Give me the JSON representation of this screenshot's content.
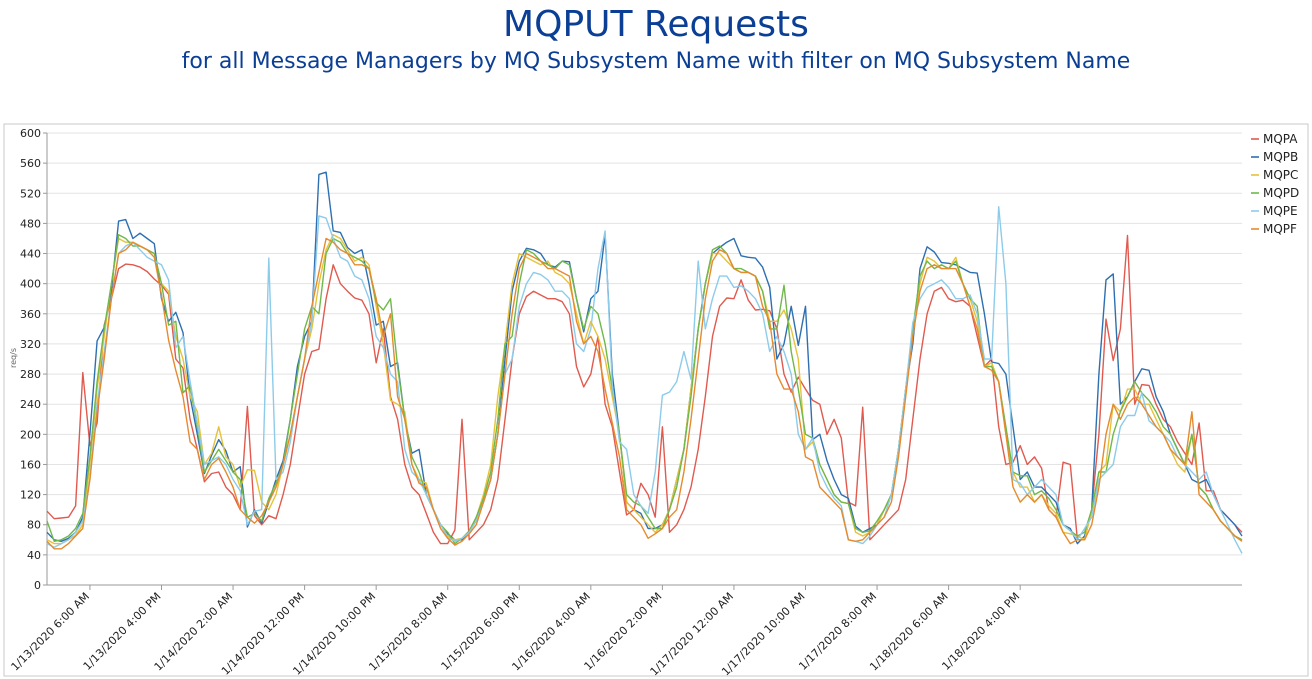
{
  "title": "MQPUT Requests",
  "subtitle": "for all Message Managers by MQ Subsystem Name with filter on MQ Subsystem Name",
  "chart_data": {
    "type": "line",
    "title": "MQPUT Requests",
    "subtitle": "for all Message Managers by MQ Subsystem Name with filter on MQ Subsystem Name",
    "xlabel": "",
    "ylabel": "req/s",
    "ylim": [
      0,
      600
    ],
    "yticks": [
      0,
      40,
      80,
      120,
      160,
      200,
      240,
      280,
      320,
      360,
      400,
      440,
      480,
      520,
      560,
      600
    ],
    "grid": true,
    "legend_position": "right",
    "x_start": "1/13/2020 12:00 AM",
    "x_end": "1/18/2020 11:00 PM",
    "x_step_hours": 1,
    "xtick_labels": [
      "1/13/2020 6:00 AM",
      "1/13/2020 4:00 PM",
      "1/14/2020 2:00 AM",
      "1/14/2020 12:00 PM",
      "1/14/2020 10:00 PM",
      "1/15/2020 8:00 AM",
      "1/15/2020 6:00 PM",
      "1/16/2020 4:00 AM",
      "1/16/2020 2:00 PM",
      "1/17/2020 12:00 AM",
      "1/17/2020 10:00 AM",
      "1/17/2020 8:00 PM",
      "1/18/2020 6:00 AM",
      "1/18/2020 4:00 PM"
    ],
    "series": [
      {
        "name": "MQPA",
        "color": "#e05a4f",
        "values": [
          98,
          88,
          89,
          90,
          105,
          282,
          185,
          215,
          345,
          380,
          420,
          426,
          425,
          422,
          416,
          406,
          398,
          386,
          300,
          288,
          220,
          180,
          137,
          148,
          150,
          130,
          120,
          100,
          237,
          92,
          80,
          92,
          88,
          120,
          160,
          220,
          280,
          310,
          313,
          380,
          425,
          400,
          390,
          381,
          378,
          360,
          295,
          340,
          250,
          220,
          160,
          130,
          120,
          95,
          70,
          55,
          55,
          73,
          220,
          60,
          70,
          80,
          100,
          140,
          220,
          300,
          360,
          383,
          390,
          385,
          380,
          380,
          376,
          360,
          290,
          263,
          280,
          330,
          240,
          210,
          150,
          93,
          100,
          135,
          120,
          90,
          210,
          70,
          80,
          100,
          130,
          180,
          250,
          330,
          370,
          381,
          380,
          405,
          378,
          365,
          366,
          364,
          340,
          280,
          256,
          276,
          260,
          245,
          240,
          200,
          220,
          195,
          110,
          105,
          236,
          60,
          70,
          80,
          90,
          100,
          140,
          220,
          300,
          360,
          390,
          395,
          380,
          376,
          378,
          370,
          330,
          290,
          300,
          210,
          160,
          163,
          185,
          160,
          170,
          155,
          100,
          90,
          163,
          160,
          60,
          60,
          100,
          200,
          353,
          298,
          340,
          464,
          240,
          266,
          265,
          240,
          220,
          210,
          190,
          175,
          160,
          215,
          125,
          125,
          100,
          90,
          80,
          70
        ]
      },
      {
        "name": "MQPB",
        "color": "#2e6fb0",
        "values": [
          70,
          60,
          58,
          62,
          70,
          90,
          200,
          324,
          342,
          390,
          483,
          485,
          460,
          467,
          460,
          453,
          380,
          350,
          362,
          335,
          250,
          200,
          148,
          172,
          193,
          178,
          150,
          157,
          77,
          100,
          82,
          110,
          140,
          165,
          220,
          290,
          330,
          350,
          545,
          548,
          470,
          468,
          448,
          440,
          445,
          400,
          345,
          350,
          290,
          295,
          220,
          175,
          180,
          120,
          100,
          80,
          68,
          60,
          60,
          70,
          90,
          110,
          140,
          200,
          300,
          390,
          430,
          447,
          445,
          440,
          425,
          422,
          430,
          429,
          380,
          336,
          380,
          390,
          465,
          280,
          200,
          110,
          100,
          95,
          75,
          75,
          80,
          100,
          140,
          180,
          260,
          340,
          400,
          440,
          448,
          455,
          460,
          437,
          435,
          434,
          422,
          395,
          300,
          320,
          370,
          318,
          370,
          193,
          200,
          165,
          140,
          120,
          115,
          78,
          70,
          75,
          80,
          100,
          120,
          180,
          260,
          320,
          420,
          449,
          442,
          428,
          427,
          425,
          420,
          415,
          414,
          360,
          296,
          294,
          280,
          210,
          140,
          150,
          130,
          130,
          120,
          110,
          80,
          75,
          55,
          65,
          100,
          280,
          405,
          413,
          240,
          250,
          270,
          287,
          285,
          250,
          230,
          200,
          180,
          160,
          140,
          135,
          140,
          120,
          100,
          90,
          80,
          65
        ]
      },
      {
        "name": "MQPC",
        "color": "#e6c23a",
        "values": [
          60,
          55,
          55,
          60,
          66,
          80,
          160,
          260,
          330,
          400,
          460,
          455,
          455,
          450,
          445,
          440,
          400,
          390,
          330,
          300,
          250,
          230,
          160,
          175,
          210,
          170,
          160,
          130,
          153,
          152,
          110,
          100,
          120,
          160,
          200,
          250,
          300,
          340,
          400,
          445,
          465,
          460,
          445,
          430,
          435,
          425,
          370,
          320,
          245,
          240,
          230,
          160,
          140,
          135,
          100,
          80,
          65,
          60,
          62,
          70,
          90,
          120,
          160,
          250,
          320,
          400,
          440,
          435,
          430,
          425,
          430,
          415,
          410,
          400,
          360,
          320,
          350,
          330,
          300,
          250,
          200,
          110,
          100,
          90,
          80,
          70,
          80,
          100,
          140,
          180,
          260,
          340,
          400,
          440,
          440,
          430,
          420,
          415,
          415,
          410,
          390,
          350,
          350,
          365,
          340,
          300,
          180,
          190,
          160,
          140,
          120,
          110,
          108,
          70,
          65,
          70,
          80,
          100,
          120,
          180,
          260,
          340,
          400,
          435,
          430,
          420,
          420,
          435,
          400,
          380,
          350,
          290,
          295,
          270,
          200,
          150,
          130,
          130,
          110,
          120,
          105,
          95,
          70,
          68,
          65,
          60,
          100,
          150,
          160,
          240,
          230,
          260,
          260,
          240,
          240,
          220,
          200,
          180,
          160,
          150,
          200,
          130,
          120,
          100,
          85,
          75,
          65,
          60
        ]
      },
      {
        "name": "MQPD",
        "color": "#6fb84a",
        "values": [
          85,
          58,
          60,
          65,
          75,
          95,
          170,
          270,
          340,
          400,
          465,
          460,
          450,
          450,
          445,
          440,
          400,
          345,
          350,
          255,
          265,
          210,
          150,
          165,
          180,
          165,
          150,
          140,
          90,
          95,
          85,
          115,
          135,
          160,
          220,
          280,
          340,
          370,
          360,
          440,
          460,
          455,
          440,
          435,
          430,
          420,
          375,
          365,
          380,
          290,
          220,
          170,
          150,
          120,
          100,
          80,
          70,
          55,
          62,
          72,
          90,
          115,
          150,
          220,
          320,
          330,
          400,
          445,
          440,
          430,
          425,
          420,
          430,
          425,
          380,
          340,
          370,
          360,
          320,
          260,
          200,
          120,
          110,
          105,
          90,
          75,
          75,
          100,
          130,
          180,
          250,
          340,
          400,
          445,
          450,
          440,
          420,
          420,
          415,
          410,
          390,
          340,
          340,
          398,
          310,
          260,
          200,
          195,
          160,
          140,
          120,
          110,
          108,
          75,
          70,
          72,
          85,
          100,
          120,
          180,
          260,
          340,
          410,
          430,
          420,
          425,
          420,
          430,
          400,
          380,
          370,
          290,
          290,
          270,
          210,
          150,
          145,
          145,
          120,
          125,
          115,
          100,
          80,
          72,
          65,
          70,
          100,
          150,
          150,
          200,
          230,
          250,
          270,
          255,
          245,
          230,
          210,
          200,
          180,
          160,
          200,
          130,
          120,
          100,
          85,
          75,
          65,
          60
        ]
      },
      {
        "name": "MQPE",
        "color": "#8dcbea",
        "values": [
          55,
          50,
          55,
          60,
          70,
          85,
          140,
          240,
          310,
          380,
          440,
          450,
          455,
          445,
          435,
          430,
          425,
          405,
          315,
          330,
          270,
          215,
          160,
          165,
          170,
          160,
          140,
          125,
          80,
          98,
          100,
          434,
          140,
          150,
          190,
          250,
          300,
          350,
          490,
          487,
          460,
          435,
          430,
          410,
          405,
          380,
          330,
          315,
          280,
          270,
          180,
          150,
          140,
          120,
          100,
          80,
          63,
          58,
          62,
          70,
          85,
          110,
          140,
          200,
          280,
          300,
          370,
          400,
          415,
          412,
          405,
          390,
          390,
          380,
          320,
          310,
          340,
          420,
          470,
          265,
          190,
          180,
          120,
          105,
          95,
          150,
          252,
          256,
          270,
          310,
          273,
          430,
          340,
          380,
          410,
          410,
          395,
          397,
          390,
          380,
          360,
          310,
          330,
          310,
          280,
          200,
          180,
          195,
          150,
          130,
          115,
          105,
          60,
          58,
          55,
          65,
          80,
          90,
          120,
          180,
          260,
          348,
          380,
          395,
          400,
          405,
          395,
          380,
          380,
          385,
          360,
          300,
          300,
          502,
          400,
          140,
          135,
          120,
          130,
          140,
          130,
          120,
          80,
          72,
          60,
          75,
          90,
          140,
          150,
          160,
          210,
          225,
          225,
          255,
          218,
          210,
          200,
          190,
          170,
          160,
          150,
          140,
          150,
          120,
          100,
          80,
          60,
          42
        ]
      },
      {
        "name": "MQPF",
        "color": "#e58a2e",
        "values": [
          58,
          48,
          48,
          55,
          65,
          75,
          140,
          230,
          300,
          380,
          440,
          445,
          455,
          450,
          445,
          435,
          385,
          325,
          285,
          250,
          190,
          180,
          140,
          160,
          168,
          150,
          130,
          100,
          90,
          82,
          92,
          110,
          130,
          160,
          200,
          250,
          300,
          370,
          415,
          460,
          455,
          445,
          440,
          425,
          425,
          420,
          380,
          330,
          360,
          250,
          220,
          160,
          135,
          130,
          100,
          75,
          62,
          53,
          58,
          68,
          80,
          110,
          140,
          200,
          280,
          360,
          420,
          440,
          435,
          430,
          420,
          420,
          415,
          410,
          350,
          320,
          330,
          310,
          260,
          215,
          170,
          100,
          90,
          80,
          62,
          68,
          75,
          90,
          100,
          150,
          220,
          300,
          380,
          430,
          445,
          440,
          420,
          415,
          415,
          410,
          370,
          350,
          280,
          260,
          260,
          230,
          170,
          165,
          130,
          120,
          110,
          100,
          60,
          58,
          60,
          70,
          80,
          90,
          110,
          170,
          250,
          330,
          390,
          420,
          425,
          420,
          420,
          420,
          400,
          370,
          340,
          290,
          285,
          270,
          200,
          130,
          110,
          120,
          110,
          120,
          100,
          90,
          70,
          55,
          60,
          60,
          80,
          130,
          200,
          240,
          220,
          240,
          250,
          240,
          225,
          210,
          200,
          180,
          170,
          160,
          230,
          120,
          110,
          100,
          85,
          75,
          65,
          58
        ]
      }
    ]
  }
}
